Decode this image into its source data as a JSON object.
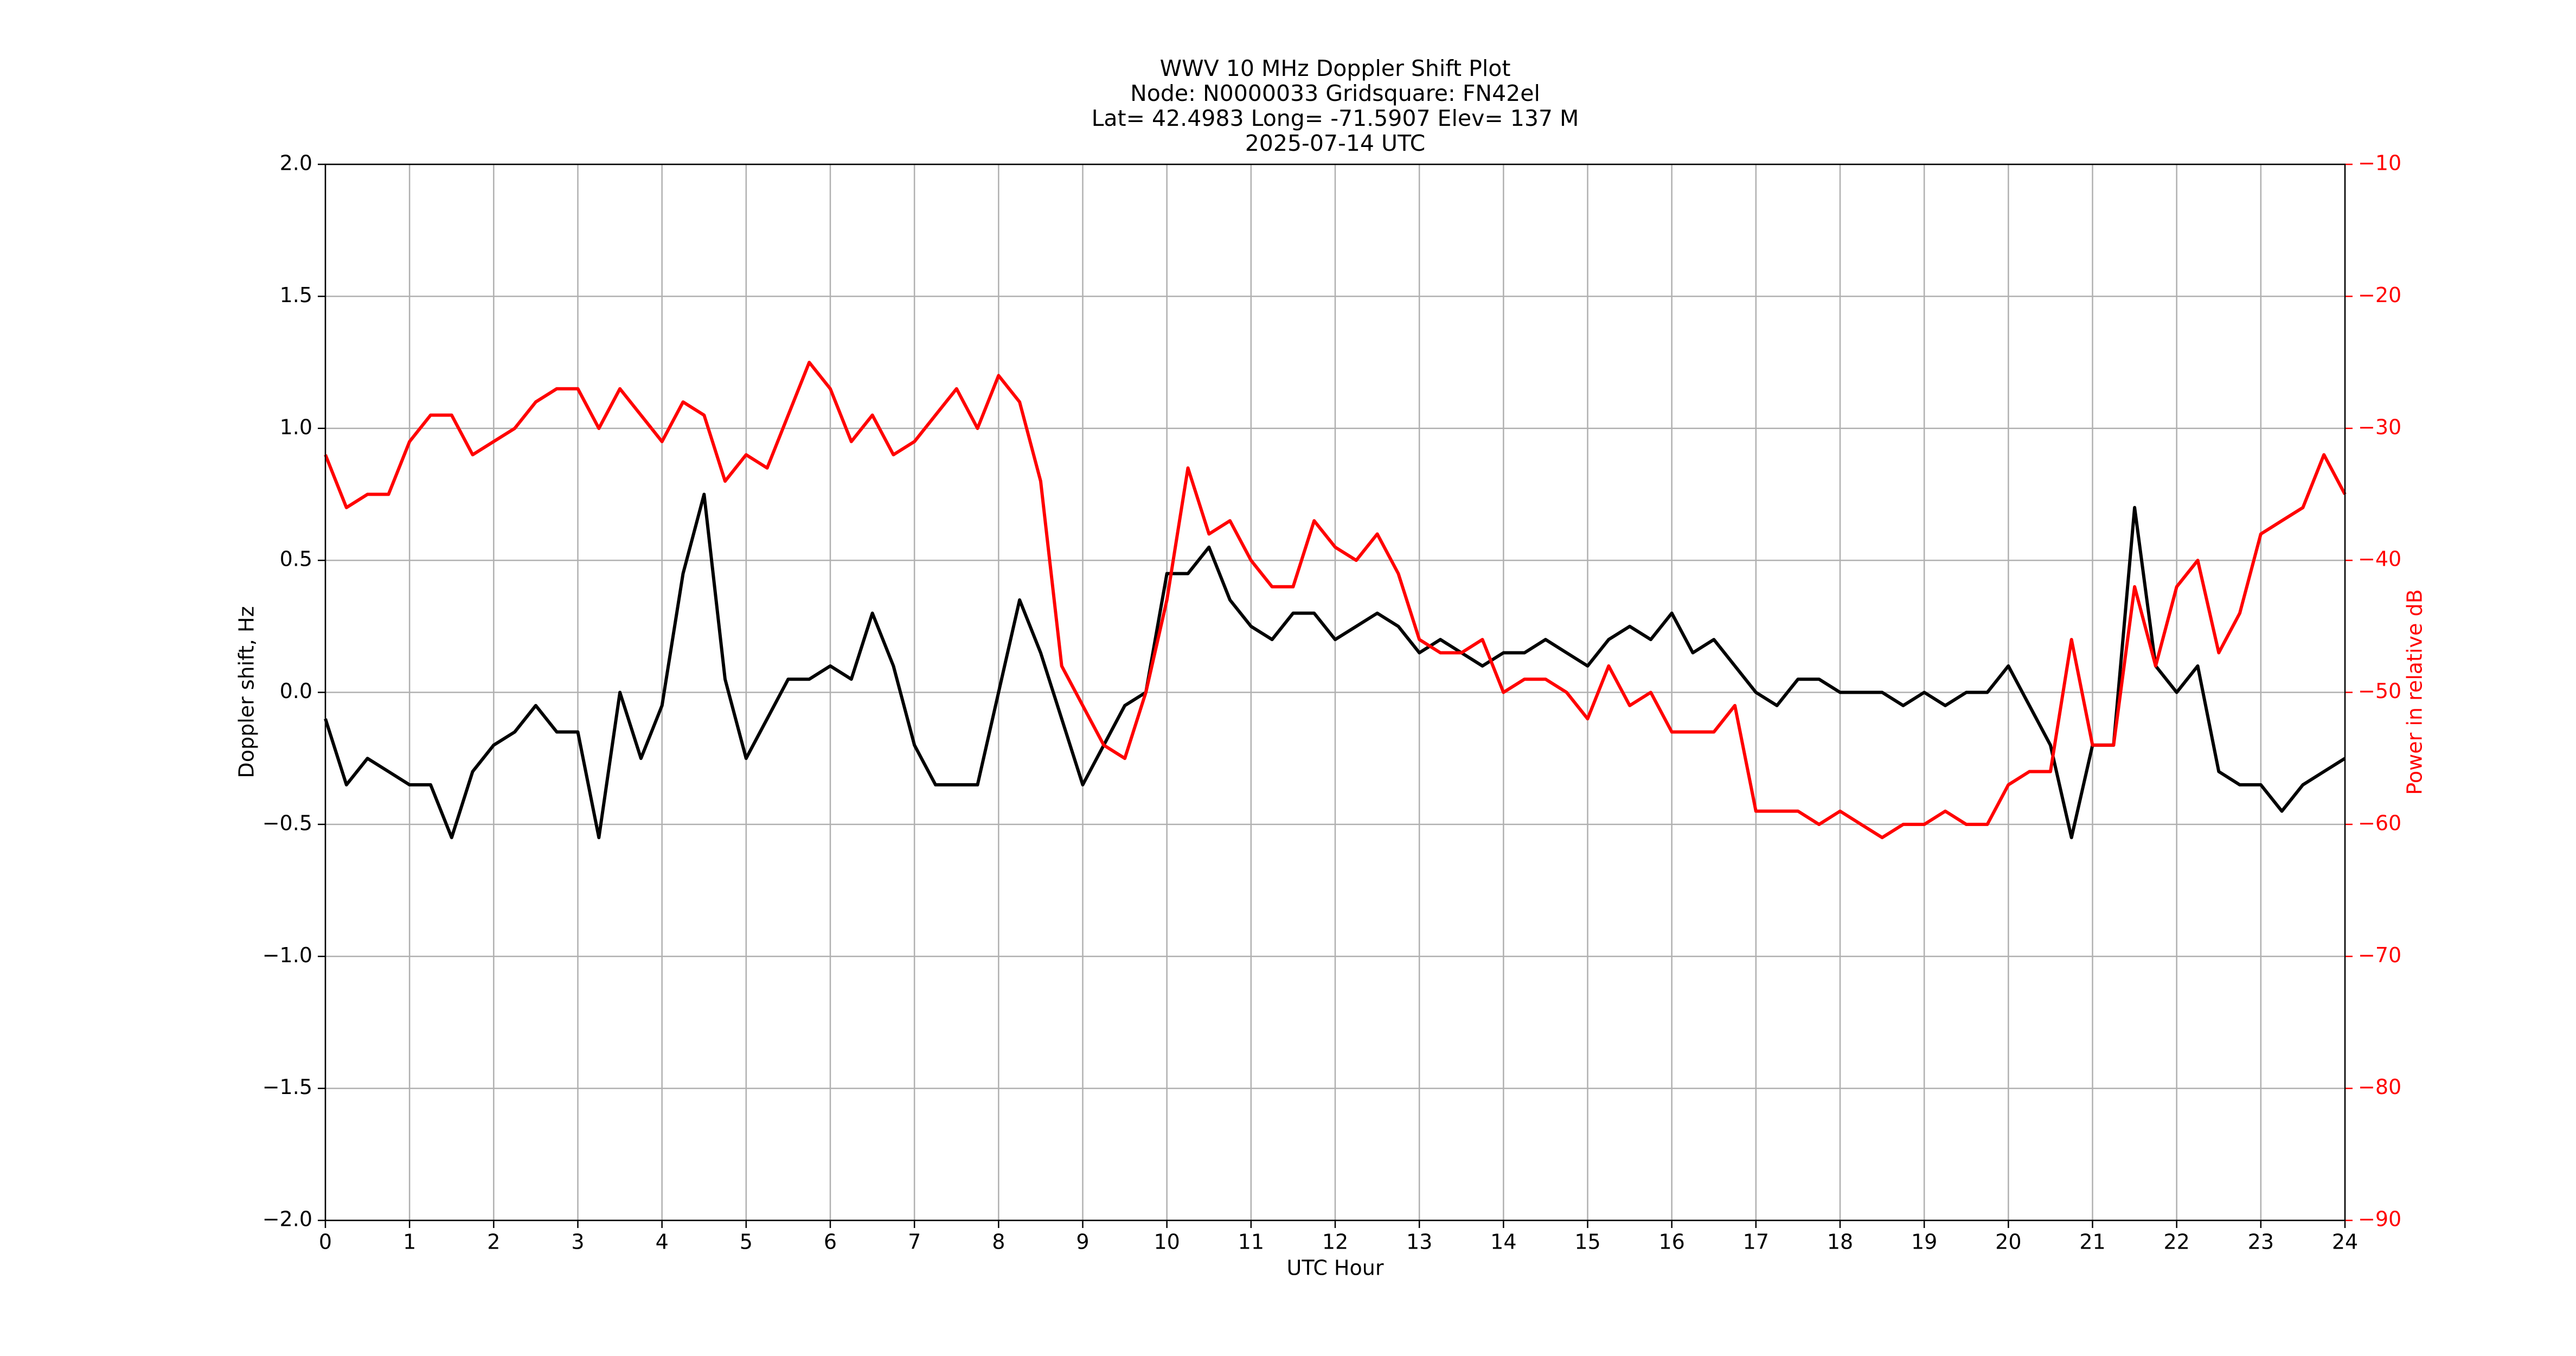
{
  "chart_data": {
    "type": "line",
    "title_lines": [
      "WWV 10 MHz Doppler Shift Plot",
      "Node:  N0000033     Gridsquare:  FN42el",
      "Lat= 42.4983    Long= -71.5907    Elev= 137 M",
      "2025-07-14  UTC"
    ],
    "xlabel": "UTC Hour",
    "ylabel": "Doppler shift, Hz",
    "y2label": "Power in relative dB",
    "y2color": "#ff0000",
    "grid": true,
    "xlim": [
      0,
      24
    ],
    "xticks": [
      0,
      1,
      2,
      3,
      4,
      5,
      6,
      7,
      8,
      9,
      10,
      11,
      12,
      13,
      14,
      15,
      16,
      17,
      18,
      19,
      20,
      21,
      22,
      23,
      24
    ],
    "ylim": [
      -2,
      2
    ],
    "yticks": [
      {
        "value": -2,
        "label": "−2.0"
      },
      {
        "value": -1.5,
        "label": "−1.5"
      },
      {
        "value": -1,
        "label": "−1.0"
      },
      {
        "value": -0.5,
        "label": "−0.5"
      },
      {
        "value": 0,
        "label": "0.0"
      },
      {
        "value": 0.5,
        "label": "0.5"
      },
      {
        "value": 1,
        "label": "1.0"
      },
      {
        "value": 1.5,
        "label": "1.5"
      },
      {
        "value": 2,
        "label": "2.0"
      }
    ],
    "y2lim": [
      -90,
      -10
    ],
    "y2ticks": [
      {
        "value": -90,
        "label": "−90"
      },
      {
        "value": -80,
        "label": "−80"
      },
      {
        "value": -70,
        "label": "−70"
      },
      {
        "value": -60,
        "label": "−60"
      },
      {
        "value": -50,
        "label": "−50"
      },
      {
        "value": -40,
        "label": "−40"
      },
      {
        "value": -30,
        "label": "−30"
      },
      {
        "value": -20,
        "label": "−20"
      },
      {
        "value": -10,
        "label": "−10"
      }
    ],
    "x": [
      0,
      0.25,
      0.5,
      0.75,
      1,
      1.25,
      1.5,
      1.75,
      2,
      2.25,
      2.5,
      2.75,
      3,
      3.25,
      3.5,
      3.75,
      4,
      4.25,
      4.5,
      4.75,
      5,
      5.25,
      5.5,
      5.75,
      6,
      6.25,
      6.5,
      6.75,
      7,
      7.25,
      7.5,
      7.75,
      8,
      8.25,
      8.5,
      8.75,
      9,
      9.25,
      9.5,
      9.75,
      10,
      10.25,
      10.5,
      10.75,
      11,
      11.25,
      11.5,
      11.75,
      12,
      12.25,
      12.5,
      12.75,
      13,
      13.25,
      13.5,
      13.75,
      14,
      14.25,
      14.5,
      14.75,
      15,
      15.25,
      15.5,
      15.75,
      16,
      16.25,
      16.5,
      16.75,
      17,
      17.25,
      17.5,
      17.75,
      18,
      18.25,
      18.5,
      18.75,
      19,
      19.25,
      19.5,
      19.75,
      20,
      20.25,
      20.5,
      20.75,
      21,
      21.25,
      21.5,
      21.75,
      22,
      22.25,
      22.5,
      22.75,
      23,
      23.25,
      23.5,
      23.75,
      24
    ],
    "series": [
      {
        "name": "Doppler shift",
        "color": "#000000",
        "axis": "y",
        "values": [
          -0.1,
          -0.35,
          -0.25,
          -0.3,
          -0.35,
          -0.35,
          -0.55,
          -0.3,
          -0.2,
          -0.15,
          -0.05,
          -0.15,
          -0.15,
          -0.55,
          0.0,
          -0.25,
          -0.05,
          0.45,
          0.75,
          0.05,
          -0.25,
          -0.1,
          0.05,
          0.05,
          0.1,
          0.05,
          0.3,
          0.1,
          -0.2,
          -0.35,
          -0.35,
          -0.35,
          0.0,
          0.35,
          0.15,
          -0.1,
          -0.35,
          -0.2,
          -0.05,
          0.0,
          0.45,
          0.45,
          0.55,
          0.35,
          0.25,
          0.2,
          0.3,
          0.3,
          0.2,
          0.25,
          0.3,
          0.25,
          0.15,
          0.2,
          0.15,
          0.1,
          0.15,
          0.15,
          0.2,
          0.15,
          0.1,
          0.2,
          0.25,
          0.2,
          0.3,
          0.15,
          0.2,
          0.1,
          0.0,
          -0.05,
          0.05,
          0.05,
          0.0,
          0.0,
          0.0,
          -0.05,
          0.0,
          -0.05,
          0.0,
          0.0,
          0.1,
          -0.05,
          -0.2,
          -0.55,
          -0.2,
          -0.2,
          0.7,
          0.1,
          0.0,
          0.1,
          -0.3,
          -0.35,
          -0.35,
          -0.45,
          -0.35,
          -0.3,
          -0.25
        ]
      },
      {
        "name": "Power",
        "color": "#ff0000",
        "axis": "y2",
        "values": [
          -32,
          -36,
          -35,
          -35,
          -31,
          -29,
          -29,
          -32,
          -31,
          -30,
          -28,
          -27,
          -27,
          -30,
          -27,
          -29,
          -31,
          -28,
          -29,
          -34,
          -32,
          -33,
          -29,
          -25,
          -27,
          -31,
          -29,
          -32,
          -31,
          -29,
          -27,
          -30,
          -26,
          -28,
          -34,
          -48,
          -51,
          -54,
          -55,
          -50,
          -43,
          -33,
          -38,
          -37,
          -40,
          -42,
          -42,
          -37,
          -39,
          -40,
          -38,
          -41,
          -46,
          -47,
          -47,
          -46,
          -50,
          -49,
          -49,
          -50,
          -52,
          -48,
          -51,
          -50,
          -53,
          -53,
          -53,
          -51,
          -59,
          -59,
          -59,
          -60,
          -59,
          -60,
          -61,
          -60,
          -60,
          -59,
          -60,
          -60,
          -57,
          -56,
          -56,
          -46,
          -54,
          -54,
          -42,
          -48,
          -42,
          -40,
          -47,
          -44,
          -38,
          -37,
          -36,
          -32,
          -35
        ]
      }
    ]
  }
}
